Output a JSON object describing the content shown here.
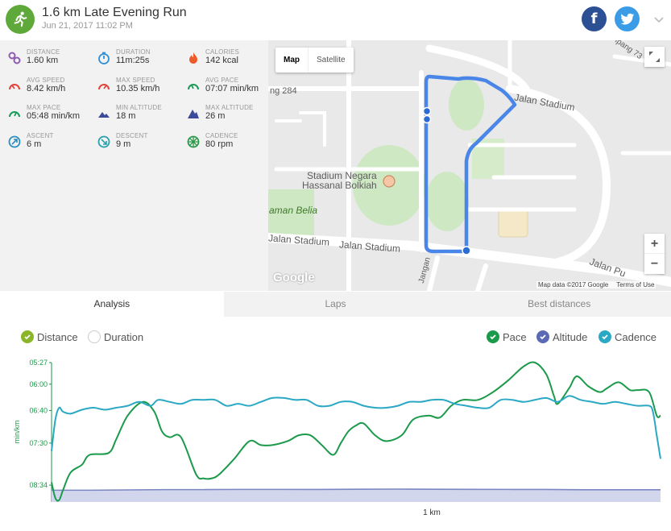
{
  "header": {
    "title": "1.6 km Late Evening Run",
    "date": "Jun 21, 2017 11:02 PM",
    "facebook_icon": "f",
    "colors": {
      "brand": "#5fa93a",
      "facebook": "#2d4f94",
      "twitter": "#3a9be6"
    }
  },
  "stats": [
    {
      "label": "DISTANCE",
      "value": "1.60 km",
      "icon": "pin-route-icon",
      "color": "#8e5bb5"
    },
    {
      "label": "DURATION",
      "value": "11m:25s",
      "icon": "stopwatch-icon",
      "color": "#2f8fd8"
    },
    {
      "label": "CALORIES",
      "value": "142 kcal",
      "icon": "flame-icon",
      "color": "#ee5a2c"
    },
    {
      "label": "AVG SPEED",
      "value": "8.42 km/h",
      "icon": "speedometer-icon",
      "color": "#e2453a"
    },
    {
      "label": "MAX SPEED",
      "value": "10.35 km/h",
      "icon": "speedometer-icon",
      "color": "#e2453a"
    },
    {
      "label": "AVG PACE",
      "value": "07:07 min/km",
      "icon": "pace-gauge-icon",
      "color": "#1a9a5b"
    },
    {
      "label": "MAX PACE",
      "value": "05:48 min/km",
      "icon": "pace-gauge-icon",
      "color": "#1a9a5b"
    },
    {
      "label": "MIN ALTITUDE",
      "value": "18 m",
      "icon": "mountain-icon",
      "color": "#3b4a9a"
    },
    {
      "label": "MAX ALTITUDE",
      "value": "26 m",
      "icon": "mountain-icon",
      "color": "#3b4a9a"
    },
    {
      "label": "ASCENT",
      "value": "6 m",
      "icon": "ascent-icon",
      "color": "#2a8fc0"
    },
    {
      "label": "DESCENT",
      "value": "9 m",
      "icon": "descent-icon",
      "color": "#2a9fb0"
    },
    {
      "label": "CADENCE",
      "value": "80 rpm",
      "icon": "cadence-icon",
      "color": "#2a9a4a"
    }
  ],
  "map": {
    "type_map": "Map",
    "type_satellite": "Satellite",
    "labels": {
      "stadium1": "Stadium Negara",
      "stadium2": "Hassanal Bolkiah",
      "jalan_stadium_top": "Jalan Stadium",
      "jalan_stadium_left": "Jalan Stadium",
      "jalan_stadium_bottom": "Jalan Stadium",
      "taman_belia": "aman Belia",
      "road_284": "ng 284",
      "jalan_pu": "Jalan Pu",
      "rampang": "ipang 73",
      "jangan": "Jangan"
    },
    "zoom_in": "+",
    "zoom_out": "−",
    "google": "Google",
    "attribution": "Map data ©2017 Google",
    "terms": "Terms of Use",
    "route_color": "#4a86e8"
  },
  "tabs": [
    {
      "label": "Analysis",
      "active": true
    },
    {
      "label": "Laps",
      "active": false
    },
    {
      "label": "Best distances",
      "active": false
    }
  ],
  "toggles": {
    "distance": "Distance",
    "duration": "Duration",
    "pace": "Pace",
    "altitude": "Altitude",
    "cadence": "Cadence"
  },
  "chart_data": {
    "type": "line",
    "xlabel": "1 km",
    "ylabel": "min/km",
    "ytick_labels": [
      "05:27",
      "06:00",
      "06:40",
      "07:30",
      "08:34"
    ],
    "x_range": [
      0,
      1.6
    ],
    "series": [
      {
        "name": "Pace",
        "color": "#1a9a4a",
        "x": [
          0.0,
          0.01,
          0.02,
          0.03,
          0.05,
          0.08,
          0.1,
          0.15,
          0.17,
          0.2,
          0.24,
          0.27,
          0.29,
          0.31,
          0.34,
          0.38,
          0.4,
          0.42,
          0.44,
          0.48,
          0.52,
          0.55,
          0.58,
          0.62,
          0.65,
          0.68,
          0.71,
          0.74,
          0.76,
          0.78,
          0.8,
          0.82,
          0.85,
          0.88,
          0.92,
          0.95,
          0.99,
          1.02,
          1.05,
          1.08,
          1.12,
          1.16,
          1.2,
          1.24,
          1.27,
          1.3,
          1.32,
          1.33,
          1.36,
          1.38,
          1.41,
          1.44,
          1.46,
          1.49,
          1.52,
          1.54,
          1.57,
          1.59,
          1.6
        ],
        "y": [
          8.5,
          8.9,
          8.95,
          8.7,
          8.25,
          8.05,
          7.8,
          7.75,
          7.4,
          6.8,
          6.45,
          6.7,
          7.2,
          7.35,
          7.35,
          8.3,
          8.4,
          8.4,
          8.3,
          7.9,
          7.45,
          7.55,
          7.55,
          7.45,
          7.3,
          7.3,
          7.55,
          7.8,
          7.5,
          7.2,
          7.05,
          7.0,
          7.3,
          7.45,
          7.3,
          6.9,
          6.8,
          6.85,
          6.55,
          6.4,
          6.4,
          6.2,
          5.9,
          5.55,
          5.45,
          5.75,
          6.3,
          6.5,
          6.1,
          5.8,
          6.05,
          6.2,
          6.1,
          5.95,
          6.15,
          6.15,
          6.2,
          6.8,
          6.8
        ]
      },
      {
        "name": "Cadence",
        "color": "#2aa8c4",
        "x": [
          0.0,
          0.01,
          0.02,
          0.03,
          0.05,
          0.08,
          0.11,
          0.14,
          0.17,
          0.2,
          0.23,
          0.26,
          0.28,
          0.31,
          0.34,
          0.37,
          0.4,
          0.43,
          0.46,
          0.49,
          0.52,
          0.55,
          0.58,
          0.61,
          0.64,
          0.67,
          0.7,
          0.73,
          0.76,
          0.79,
          0.82,
          0.85,
          0.88,
          0.91,
          0.94,
          0.97,
          1.0,
          1.03,
          1.06,
          1.09,
          1.12,
          1.15,
          1.18,
          1.21,
          1.24,
          1.27,
          1.3,
          1.33,
          1.36,
          1.39,
          1.42,
          1.45,
          1.48,
          1.51,
          1.54,
          1.57,
          1.58,
          1.59,
          1.6
        ],
        "y": [
          7.7,
          6.9,
          6.6,
          6.7,
          6.75,
          6.65,
          6.6,
          6.65,
          6.6,
          6.55,
          6.45,
          6.55,
          6.4,
          6.45,
          6.5,
          6.4,
          6.4,
          6.4,
          6.55,
          6.5,
          6.55,
          6.45,
          6.35,
          6.35,
          6.4,
          6.4,
          6.55,
          6.55,
          6.45,
          6.45,
          6.55,
          6.6,
          6.6,
          6.55,
          6.45,
          6.45,
          6.4,
          6.4,
          6.5,
          6.55,
          6.6,
          6.6,
          6.4,
          6.4,
          6.45,
          6.4,
          6.35,
          6.45,
          6.3,
          6.4,
          6.45,
          6.5,
          6.45,
          6.5,
          6.55,
          6.55,
          6.7,
          7.3,
          7.9
        ]
      }
    ],
    "altitude_area": {
      "name": "Altitude",
      "color": "#7b86c3",
      "fill": "#d2d6ec",
      "x": [
        0.0,
        0.1,
        0.2,
        0.3,
        0.4,
        0.5,
        0.6,
        0.7,
        0.8,
        0.9,
        1.0,
        1.1,
        1.2,
        1.3,
        1.4,
        1.5,
        1.6
      ],
      "values_m": [
        19,
        19,
        19.5,
        20,
        20,
        20.3,
        20.3,
        20.2,
        20.6,
        20.8,
        20.6,
        20.4,
        20.3,
        20.2,
        19.8,
        19.7,
        19.8
      ]
    }
  }
}
